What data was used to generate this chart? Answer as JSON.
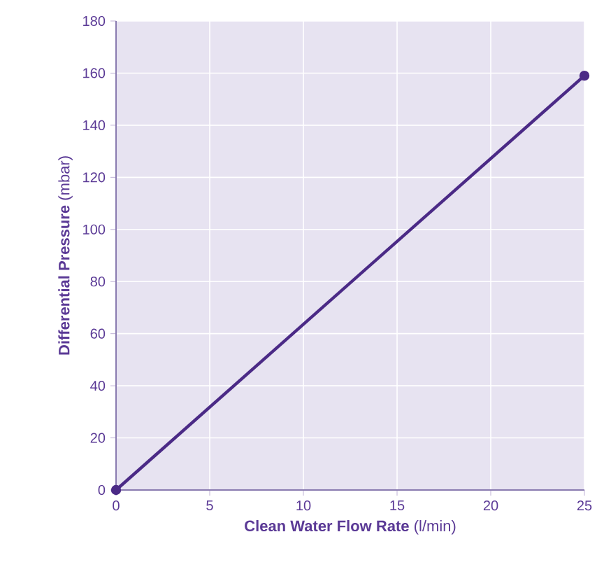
{
  "chart_data": {
    "type": "line",
    "xlabel": "**Clean Water Flow Rate** (l/min)",
    "ylabel": "**Differential Pressure** (mbar)",
    "x": [
      0,
      25
    ],
    "series": [
      {
        "color": "#4b2a86",
        "values": [
          0,
          159
        ]
      }
    ],
    "xlim": [
      0,
      25
    ],
    "xticks": [
      0,
      5,
      10,
      15,
      20,
      25
    ],
    "ylim": [
      0,
      180
    ],
    "yticks": [
      0,
      20,
      40,
      60,
      80,
      100,
      120,
      140,
      160,
      180
    ],
    "grid": true,
    "marker": "circle",
    "line_style": "solid"
  }
}
